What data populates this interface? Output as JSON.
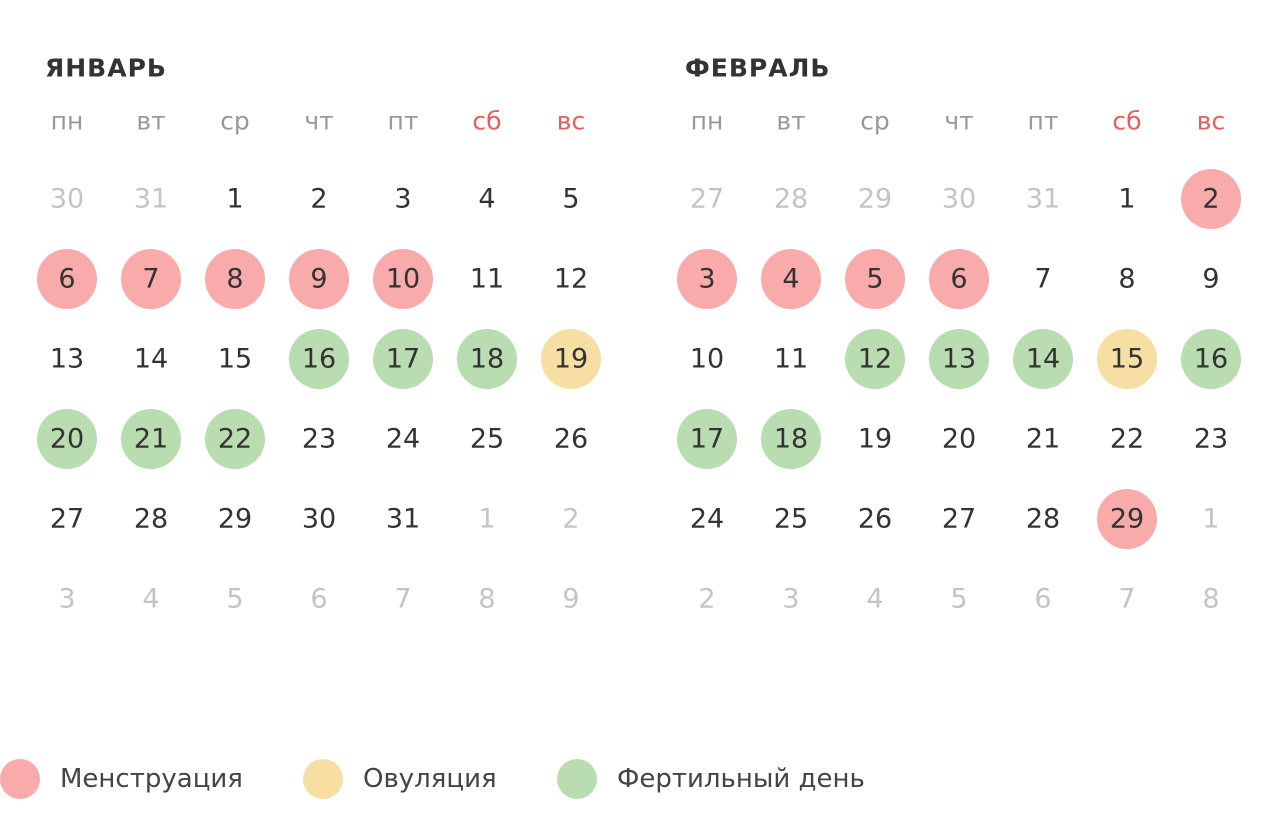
{
  "months": [
    {
      "title": "ЯНВАРЬ",
      "weekdays": [
        {
          "label": "пн"
        },
        {
          "label": "вт"
        },
        {
          "label": "ср"
        },
        {
          "label": "чт"
        },
        {
          "label": "пт"
        },
        {
          "label": "сб",
          "color": "#e85d5d"
        },
        {
          "label": "вс",
          "color": "#e85d5d"
        }
      ],
      "weeks": [
        [
          {
            "d": 30,
            "muted": true
          },
          {
            "d": 31,
            "muted": true
          },
          {
            "d": 1
          },
          {
            "d": 2
          },
          {
            "d": 3
          },
          {
            "d": 4
          },
          {
            "d": 5
          }
        ],
        [
          {
            "d": 6,
            "fill": "#f9aaaa"
          },
          {
            "d": 7,
            "fill": "#f9aaaa"
          },
          {
            "d": 8,
            "fill": "#f9aaaa"
          },
          {
            "d": 9,
            "fill": "#f9aaaa"
          },
          {
            "d": 10,
            "fill": "#f9aaaa"
          },
          {
            "d": 11
          },
          {
            "d": 12
          }
        ],
        [
          {
            "d": 13
          },
          {
            "d": 14
          },
          {
            "d": 15
          },
          {
            "d": 16,
            "fill": "#b9dcb1"
          },
          {
            "d": 17,
            "fill": "#b9dcb1"
          },
          {
            "d": 18,
            "fill": "#b9dcb1"
          },
          {
            "d": 19,
            "fill": "#f7dfa3"
          }
        ],
        [
          {
            "d": 20,
            "fill": "#b9dcb1"
          },
          {
            "d": 21,
            "fill": "#b9dcb1"
          },
          {
            "d": 22,
            "fill": "#b9dcb1"
          },
          {
            "d": 23
          },
          {
            "d": 24
          },
          {
            "d": 25
          },
          {
            "d": 26
          }
        ],
        [
          {
            "d": 27
          },
          {
            "d": 28
          },
          {
            "d": 29
          },
          {
            "d": 30
          },
          {
            "d": 31
          },
          {
            "d": 1,
            "muted": true
          },
          {
            "d": 2,
            "muted": true
          }
        ],
        [
          {
            "d": 3,
            "muted": true
          },
          {
            "d": 4,
            "muted": true
          },
          {
            "d": 5,
            "muted": true
          },
          {
            "d": 6,
            "muted": true
          },
          {
            "d": 7,
            "muted": true
          },
          {
            "d": 8,
            "muted": true
          },
          {
            "d": 9,
            "muted": true
          }
        ]
      ]
    },
    {
      "title": "ФЕВРАЛЬ",
      "weekdays": [
        {
          "label": "пн"
        },
        {
          "label": "вт"
        },
        {
          "label": "ср"
        },
        {
          "label": "чт"
        },
        {
          "label": "пт"
        },
        {
          "label": "сб",
          "color": "#e85d5d"
        },
        {
          "label": "вс",
          "color": "#e85d5d"
        }
      ],
      "weeks": [
        [
          {
            "d": 27,
            "muted": true
          },
          {
            "d": 28,
            "muted": true
          },
          {
            "d": 29,
            "muted": true
          },
          {
            "d": 30,
            "muted": true
          },
          {
            "d": 31,
            "muted": true
          },
          {
            "d": 1
          },
          {
            "d": 2,
            "fill": "#f9aaaa"
          }
        ],
        [
          {
            "d": 3,
            "fill": "#f9aaaa"
          },
          {
            "d": 4,
            "fill": "#f9aaaa"
          },
          {
            "d": 5,
            "fill": "#f9aaaa"
          },
          {
            "d": 6,
            "fill": "#f9aaaa"
          },
          {
            "d": 7
          },
          {
            "d": 8
          },
          {
            "d": 9
          }
        ],
        [
          {
            "d": 10
          },
          {
            "d": 11
          },
          {
            "d": 12,
            "fill": "#b9dcb1"
          },
          {
            "d": 13,
            "fill": "#b9dcb1"
          },
          {
            "d": 14,
            "fill": "#b9dcb1"
          },
          {
            "d": 15,
            "fill": "#f7dfa3"
          },
          {
            "d": 16,
            "fill": "#b9dcb1"
          }
        ],
        [
          {
            "d": 17,
            "fill": "#b9dcb1"
          },
          {
            "d": 18,
            "fill": "#b9dcb1"
          },
          {
            "d": 19
          },
          {
            "d": 20
          },
          {
            "d": 21
          },
          {
            "d": 22
          },
          {
            "d": 23
          }
        ],
        [
          {
            "d": 24
          },
          {
            "d": 25
          },
          {
            "d": 26
          },
          {
            "d": 27
          },
          {
            "d": 28
          },
          {
            "d": 29,
            "fill": "#f9aaaa"
          },
          {
            "d": 1,
            "muted": true
          }
        ],
        [
          {
            "d": 2,
            "muted": true
          },
          {
            "d": 3,
            "muted": true
          },
          {
            "d": 4,
            "muted": true
          },
          {
            "d": 5,
            "muted": true
          },
          {
            "d": 6,
            "muted": true
          },
          {
            "d": 7,
            "muted": true
          },
          {
            "d": 8,
            "muted": true
          }
        ]
      ]
    }
  ],
  "legend": [
    {
      "label": "Менструация",
      "color": "#f9aaaa"
    },
    {
      "label": "Овуляция",
      "color": "#f7dfa3"
    },
    {
      "label": "Фертильный день",
      "color": "#b9dcb1"
    }
  ]
}
